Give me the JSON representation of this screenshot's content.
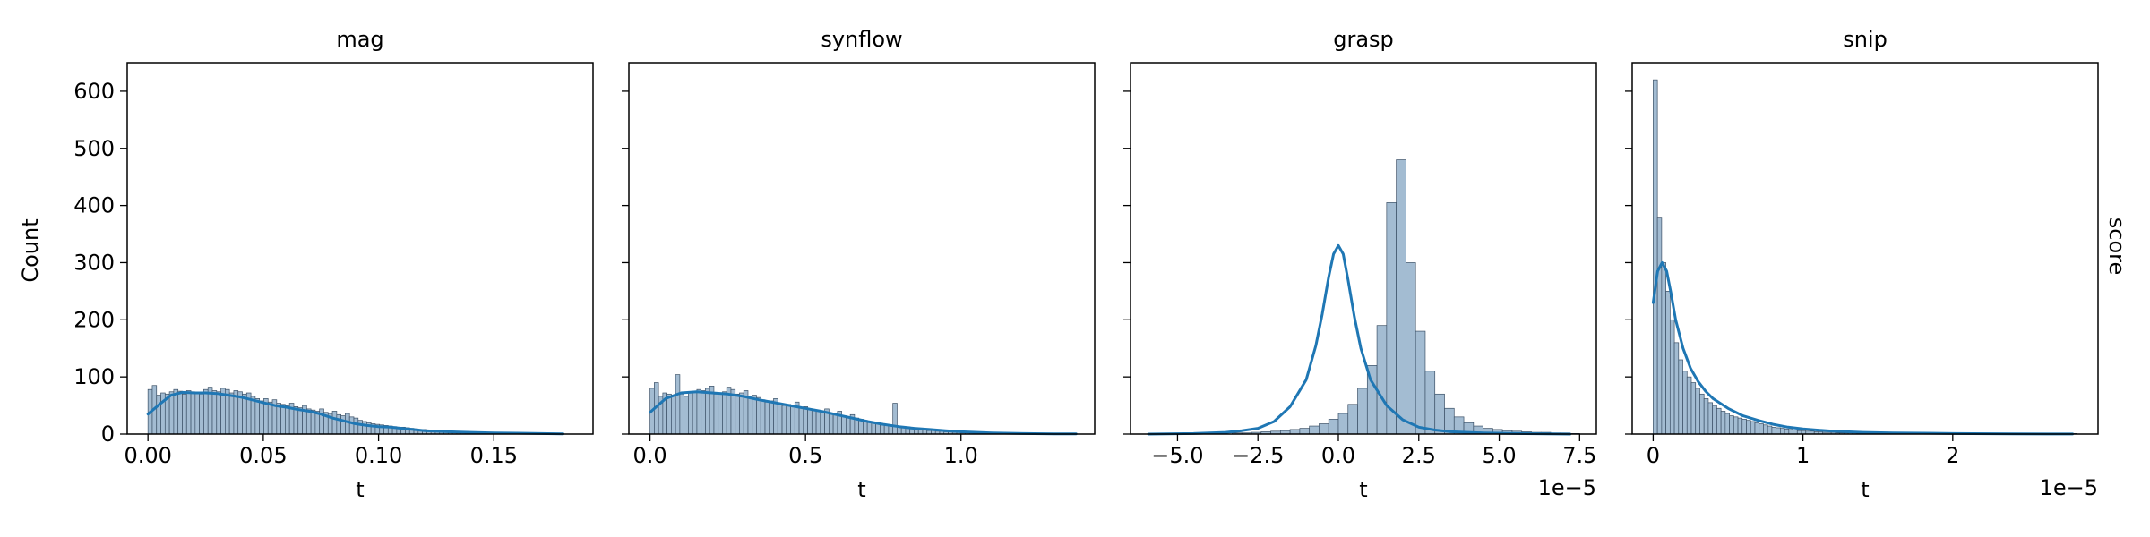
{
  "figure": {
    "ylabel": "Count",
    "row_label": "score",
    "colors": {
      "bar_fill": "#a3bcd2",
      "bar_edge": "#3b5066",
      "kde": "#1f77b4",
      "axes": "#000000"
    }
  },
  "chart_data": [
    {
      "type": "bar",
      "title": "mag",
      "xlabel": "t",
      "offset_text": "",
      "xlim": [
        -0.009,
        0.193
      ],
      "ylim": [
        0,
        650
      ],
      "xticks": [
        0.0,
        0.05,
        0.1,
        0.15
      ],
      "xtick_labels": [
        "0.00",
        "0.05",
        "0.10",
        "0.15"
      ],
      "yticks": [
        0,
        100,
        200,
        300,
        400,
        500,
        600
      ],
      "ytick_labels": [
        "0",
        "100",
        "200",
        "300",
        "400",
        "500",
        "600"
      ],
      "bin_start": 0.0,
      "bin_width": 0.00186,
      "values": [
        78,
        85,
        68,
        72,
        70,
        74,
        78,
        75,
        70,
        76,
        74,
        72,
        70,
        78,
        82,
        76,
        74,
        80,
        78,
        72,
        76,
        74,
        70,
        72,
        66,
        62,
        58,
        62,
        56,
        60,
        54,
        52,
        50,
        54,
        48,
        46,
        50,
        44,
        42,
        40,
        44,
        38,
        36,
        40,
        34,
        32,
        36,
        30,
        28,
        24,
        22,
        20,
        18,
        17,
        16,
        15,
        14,
        13,
        12,
        12,
        11,
        10,
        9,
        8,
        8,
        7,
        6,
        6,
        5,
        5,
        4,
        4,
        3,
        3,
        3,
        2,
        2,
        2,
        2,
        1,
        1,
        1,
        1,
        1,
        1,
        1,
        1,
        1,
        1,
        1
      ],
      "kde": {
        "x": [
          0.0,
          0.005,
          0.01,
          0.015,
          0.02,
          0.025,
          0.03,
          0.035,
          0.04,
          0.045,
          0.05,
          0.055,
          0.06,
          0.065,
          0.07,
          0.075,
          0.08,
          0.085,
          0.09,
          0.095,
          0.1,
          0.105,
          0.11,
          0.115,
          0.12,
          0.13,
          0.14,
          0.15,
          0.16,
          0.17,
          0.18
        ],
        "y": [
          35,
          52,
          68,
          73,
          72,
          72,
          71,
          68,
          65,
          60,
          55,
          50,
          47,
          43,
          40,
          35,
          28,
          23,
          18,
          15,
          13,
          12,
          10,
          8,
          6,
          4,
          3,
          2,
          1.5,
          1,
          0.5
        ]
      }
    },
    {
      "type": "bar",
      "title": "synflow",
      "xlabel": "t",
      "offset_text": "",
      "xlim": [
        -0.068,
        1.43
      ],
      "ylim": [
        0,
        650
      ],
      "xticks": [
        0.0,
        0.5,
        1.0
      ],
      "xtick_labels": [
        "0.0",
        "0.5",
        "1.0"
      ],
      "yticks": [
        0,
        100,
        200,
        300,
        400,
        500,
        600
      ],
      "ytick_labels": [],
      "bin_start": 0.0,
      "bin_width": 0.0137,
      "values": [
        80,
        90,
        66,
        72,
        70,
        68,
        104,
        70,
        66,
        72,
        74,
        78,
        76,
        80,
        84,
        70,
        72,
        74,
        82,
        78,
        70,
        72,
        76,
        66,
        68,
        64,
        60,
        56,
        58,
        62,
        54,
        50,
        52,
        48,
        56,
        46,
        48,
        44,
        42,
        40,
        38,
        44,
        36,
        34,
        40,
        32,
        30,
        34,
        28,
        26,
        24,
        22,
        20,
        18,
        16,
        15,
        14,
        54,
        12,
        11,
        10,
        9,
        9,
        8,
        7,
        6,
        6,
        5,
        5,
        4,
        4,
        3,
        3,
        2,
        2,
        2,
        2,
        1,
        1,
        1,
        1,
        1,
        1,
        1,
        1,
        1,
        1,
        1,
        1,
        1
      ],
      "kde": {
        "x": [
          0.0,
          0.05,
          0.1,
          0.15,
          0.2,
          0.25,
          0.3,
          0.35,
          0.4,
          0.45,
          0.5,
          0.55,
          0.6,
          0.65,
          0.7,
          0.75,
          0.8,
          0.85,
          0.9,
          0.95,
          1.0,
          1.1,
          1.2,
          1.3,
          1.37
        ],
        "y": [
          38,
          62,
          72,
          74,
          72,
          70,
          66,
          60,
          55,
          50,
          45,
          40,
          34,
          28,
          22,
          17,
          13,
          10,
          8,
          6,
          4,
          2,
          1,
          0.5,
          0.3
        ]
      }
    },
    {
      "type": "bar",
      "title": "grasp",
      "xlabel": "t",
      "offset_text": "1e−5",
      "xlim": [
        -6.46,
        8.02
      ],
      "ylim": [
        0,
        650
      ],
      "xticks": [
        -5.0,
        -2.5,
        0.0,
        2.5,
        5.0,
        7.5
      ],
      "xtick_labels": [
        "−5.0",
        "−2.5",
        "0.0",
        "2.5",
        "5.0",
        "7.5"
      ],
      "yticks": [
        0,
        100,
        200,
        300,
        400,
        500,
        600
      ],
      "ytick_labels": [],
      "bin_start": -3.3,
      "bin_width": 0.3,
      "values": [
        2,
        2,
        3,
        4,
        5,
        6,
        8,
        10,
        14,
        18,
        26,
        36,
        52,
        80,
        120,
        190,
        405,
        480,
        300,
        180,
        110,
        70,
        45,
        30,
        20,
        14,
        10,
        8,
        6,
        5,
        4,
        3,
        3,
        2,
        2,
        1
      ],
      "kde": {
        "x": [
          -5.9,
          -4.5,
          -3.5,
          -3.0,
          -2.5,
          -2.0,
          -1.5,
          -1.0,
          -0.7,
          -0.5,
          -0.3,
          -0.15,
          0.0,
          0.15,
          0.3,
          0.5,
          0.7,
          1.0,
          1.5,
          2.0,
          2.5,
          3.0,
          3.5,
          4.5,
          5.5,
          6.5,
          7.2
        ],
        "y": [
          0,
          1,
          3,
          6,
          10,
          22,
          48,
          95,
          155,
          210,
          275,
          315,
          330,
          315,
          270,
          205,
          150,
          95,
          50,
          25,
          12,
          7,
          4,
          2,
          1,
          0.5,
          0
        ]
      }
    },
    {
      "type": "bar",
      "title": "snip",
      "xlabel": "t",
      "offset_text": "1e−5",
      "xlim": [
        -0.14,
        2.97
      ],
      "ylim": [
        0,
        650
      ],
      "xticks": [
        0,
        1,
        2
      ],
      "xtick_labels": [
        "0",
        "1",
        "2"
      ],
      "yticks": [
        0,
        100,
        200,
        300,
        400,
        500,
        600
      ],
      "ytick_labels": [],
      "bin_start": 0.0,
      "bin_width": 0.0283,
      "values": [
        620,
        378,
        300,
        250,
        200,
        160,
        130,
        110,
        100,
        90,
        80,
        70,
        62,
        55,
        50,
        45,
        40,
        36,
        32,
        30,
        28,
        26,
        24,
        22,
        20,
        18,
        16,
        14,
        12,
        11,
        10,
        9,
        8,
        7,
        6,
        6,
        5,
        5,
        4,
        4,
        3,
        3,
        3,
        2,
        2,
        2,
        2,
        2,
        1,
        1,
        1,
        1,
        1,
        1,
        1,
        1,
        1,
        1,
        1,
        1,
        1,
        1,
        1,
        1,
        1,
        1,
        1,
        1,
        1,
        1,
        1,
        1,
        1,
        1,
        1,
        1,
        1,
        1,
        1,
        1,
        1,
        1,
        1,
        1,
        1,
        1,
        1,
        1,
        1,
        1,
        1,
        1,
        1,
        1,
        1,
        1,
        1,
        1,
        1,
        1
      ],
      "kde": {
        "x": [
          0.0,
          0.03,
          0.06,
          0.09,
          0.12,
          0.15,
          0.2,
          0.25,
          0.3,
          0.35,
          0.4,
          0.5,
          0.6,
          0.7,
          0.8,
          0.9,
          1.0,
          1.2,
          1.4,
          1.6,
          1.8,
          2.0,
          2.4,
          2.8
        ],
        "y": [
          230,
          285,
          300,
          285,
          245,
          200,
          150,
          115,
          92,
          75,
          62,
          45,
          32,
          24,
          17,
          12,
          9,
          5,
          3,
          2,
          1.5,
          1,
          0.5,
          0.2
        ]
      }
    }
  ]
}
